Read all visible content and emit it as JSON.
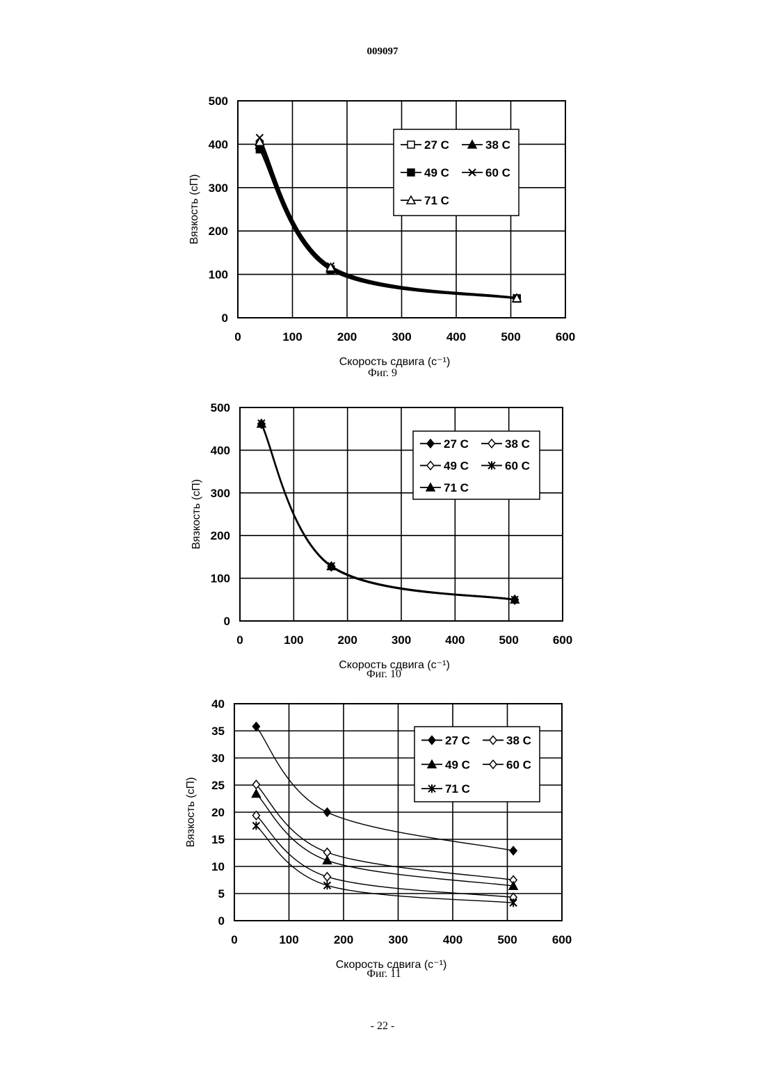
{
  "header": {
    "document_number": "009097"
  },
  "footer": {
    "page_number": "- 22 -"
  },
  "chart_data": [
    {
      "type": "line",
      "caption": "Фиг. 9",
      "xlabel": "Скорость сдвига (с⁻¹)",
      "ylabel": "Вязкость (сП)",
      "xlim": [
        0,
        600
      ],
      "ylim": [
        0,
        500
      ],
      "xticks": [
        0,
        100,
        200,
        300,
        400,
        500,
        600
      ],
      "yticks": [
        0,
        100,
        200,
        300,
        400,
        500
      ],
      "grid": true,
      "legend_position": "top-right",
      "series": [
        {
          "name": "27 C",
          "marker": "square-open",
          "x": [
            40,
            170,
            511
          ],
          "y": [
            400,
            112,
            45
          ]
        },
        {
          "name": "38 C",
          "marker": "triangle-filled",
          "x": [
            40,
            170,
            511
          ],
          "y": [
            398,
            113,
            45
          ]
        },
        {
          "name": "49 C",
          "marker": "square-filled",
          "x": [
            40,
            170,
            511
          ],
          "y": [
            388,
            110,
            44
          ]
        },
        {
          "name": "60 C",
          "marker": "x",
          "x": [
            40,
            170,
            511
          ],
          "y": [
            415,
            119,
            46
          ]
        },
        {
          "name": "71 C",
          "marker": "triangle-open",
          "x": [
            40,
            170,
            511
          ],
          "y": [
            405,
            116,
            45
          ]
        }
      ]
    },
    {
      "type": "line",
      "caption": "Фиг. 10",
      "xlabel": "Скорость сдвига (с⁻¹)",
      "ylabel": "Вязкость (сП)",
      "xlim": [
        0,
        600
      ],
      "ylim": [
        0,
        500
      ],
      "xticks": [
        0,
        100,
        200,
        300,
        400,
        500,
        600
      ],
      "yticks": [
        0,
        100,
        200,
        300,
        400,
        500
      ],
      "grid": true,
      "legend_position": "top-right",
      "series": [
        {
          "name": "27 C",
          "marker": "diamond-filled",
          "x": [
            40,
            170,
            511
          ],
          "y": [
            462,
            128,
            50
          ]
        },
        {
          "name": "38 C",
          "marker": "diamond-open",
          "x": [
            40,
            170,
            511
          ],
          "y": [
            462,
            128,
            50
          ]
        },
        {
          "name": "49 C",
          "marker": "diamond-open",
          "x": [
            40,
            170,
            511
          ],
          "y": [
            461,
            127,
            49
          ]
        },
        {
          "name": "60 C",
          "marker": "asterisk",
          "x": [
            40,
            170,
            511
          ],
          "y": [
            463,
            129,
            50
          ]
        },
        {
          "name": "71 C",
          "marker": "triangle-filled",
          "x": [
            40,
            170,
            511
          ],
          "y": [
            462,
            128,
            50
          ]
        }
      ]
    },
    {
      "type": "line",
      "caption": "Фиг. 11",
      "xlabel": "Скорость сдвига (с⁻¹)",
      "ylabel": "Вязкость (сП)",
      "xlim": [
        0,
        600
      ],
      "ylim": [
        0,
        40
      ],
      "xticks": [
        0,
        100,
        200,
        300,
        400,
        500,
        600
      ],
      "yticks": [
        0,
        5,
        10,
        15,
        20,
        25,
        30,
        35,
        40
      ],
      "grid": true,
      "legend_position": "top-right",
      "series": [
        {
          "name": "27 C",
          "marker": "diamond-filled",
          "x": [
            40,
            170,
            511
          ],
          "y": [
            35.8,
            20.0,
            12.9
          ]
        },
        {
          "name": "38 C",
          "marker": "diamond-open",
          "x": [
            40,
            170,
            511
          ],
          "y": [
            25.1,
            12.6,
            7.5
          ]
        },
        {
          "name": "49 C",
          "marker": "triangle-filled",
          "x": [
            40,
            170,
            511
          ],
          "y": [
            23.4,
            11.1,
            6.4
          ]
        },
        {
          "name": "60 C",
          "marker": "diamond-open",
          "x": [
            40,
            170,
            511
          ],
          "y": [
            19.4,
            8.1,
            4.3
          ]
        },
        {
          "name": "71 C",
          "marker": "asterisk",
          "x": [
            40,
            170,
            511
          ],
          "y": [
            17.5,
            6.5,
            3.3
          ]
        }
      ]
    }
  ]
}
